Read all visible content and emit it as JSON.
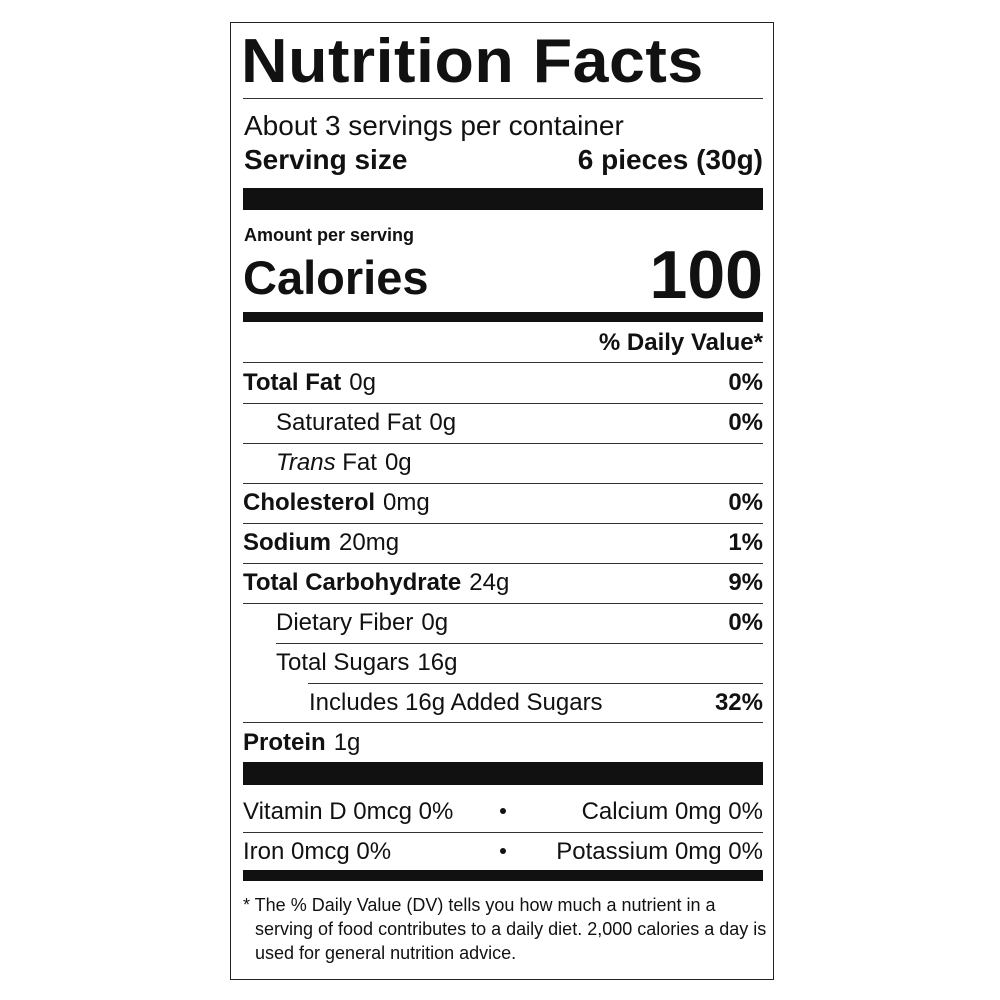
{
  "title": "Nutrition Facts",
  "servings_per_container": "About 3 servings per container",
  "serving_size": {
    "label": "Serving size",
    "value": "6 pieces (30g)"
  },
  "amount_per_serving": "Amount per serving",
  "calories": {
    "label": "Calories",
    "value": "100"
  },
  "daily_value_header": "% Daily Value*",
  "nutrients": [
    {
      "name": "Total Fat",
      "amount": "0g",
      "dv": "0%"
    },
    {
      "name": "Saturated Fat",
      "amount": "0g",
      "dv": "0%"
    },
    {
      "name_italic": "Trans",
      "name": "Fat",
      "amount": "0g"
    },
    {
      "name": "Cholesterol",
      "amount": "0mg",
      "dv": "0%"
    },
    {
      "name": "Sodium",
      "amount": "20mg",
      "dv": "1%"
    },
    {
      "name": "Total Carbohydrate",
      "amount": "24g",
      "dv": "9%"
    },
    {
      "name": "Dietary Fiber",
      "amount": "0g",
      "dv": "0%"
    },
    {
      "name": "Total Sugars",
      "amount": "16g"
    },
    {
      "name": "Includes 16g Added Sugars",
      "dv": "32%"
    },
    {
      "name": "Protein",
      "amount": "1g"
    }
  ],
  "micronutrients": [
    {
      "left": "Vitamin D 0mcg 0%",
      "right": "Calcium 0mg 0%"
    },
    {
      "left": "Iron 0mcg 0%",
      "right": "Potassium 0mg 0%"
    }
  ],
  "footnote": "* The % Daily Value (DV) tells you how much a nutrient in a serving of food contributes to a daily diet. 2,000 calories a day is used for general nutrition advice."
}
